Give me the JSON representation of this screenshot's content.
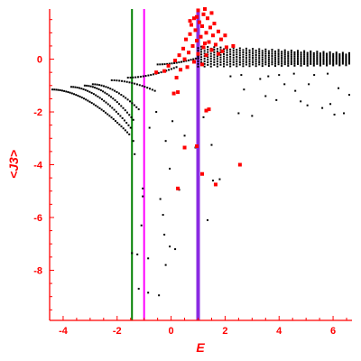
{
  "colors": {
    "axis": "#ff0000",
    "text": "#ff0000",
    "black_points": "#000000",
    "red_points": "#ff0000",
    "line_green": "#008000",
    "line_magenta": "#ff00ff",
    "line_purple": "#8a2be2",
    "background": "#ffffff"
  },
  "chart_data": {
    "type": "scatter",
    "title": "",
    "xlabel": "E",
    "ylabel": "<J3>",
    "xlim": [
      -4.5,
      6.7
    ],
    "ylim": [
      -9.9,
      1.9
    ],
    "x_ticks": [
      -4,
      -2,
      0,
      2,
      4,
      6
    ],
    "y_ticks": [
      -8,
      -6,
      -4,
      -2,
      0
    ],
    "x_tick_labels": [
      "-4",
      "-2",
      "0",
      "2",
      "4",
      "6"
    ],
    "y_tick_labels": [
      "-8",
      "-6",
      "-4",
      "-2",
      "0"
    ],
    "vertical_lines": [
      {
        "x": -1.45,
        "color": "#008000"
      },
      {
        "x": -1.0,
        "color": "#ff00ff"
      },
      {
        "x": 1.0,
        "color": "#8a2be2"
      }
    ],
    "black_bands": [
      {
        "x_start": -4.4,
        "x_end": -1.55,
        "y_start": -1.15,
        "y_end": -2.85,
        "n": 40
      },
      {
        "x_start": -3.7,
        "x_end": -1.5,
        "y_start": -1.05,
        "y_end": -2.6,
        "n": 30
      },
      {
        "x_start": -3.2,
        "x_end": -1.4,
        "y_start": -1.0,
        "y_end": -2.3,
        "n": 25
      },
      {
        "x_start": -2.9,
        "x_end": -1.2,
        "y_start": -0.95,
        "y_end": -1.9,
        "n": 22
      },
      {
        "x_start": -2.2,
        "x_end": -0.6,
        "y_start": -0.8,
        "y_end": -1.2,
        "n": 18
      },
      {
        "x_start": -1.6,
        "x_end": 0.2,
        "y_start": -0.7,
        "y_end": -0.3,
        "n": 20
      },
      {
        "x_start": -0.5,
        "x_end": 1.0,
        "y_start": -0.2,
        "y_end": 0.05,
        "n": 18
      }
    ],
    "black_cloud": {
      "x_min": 1.0,
      "x_max": 6.6,
      "y_top": 0.45,
      "y_bottom": -0.25,
      "rows": 8,
      "cols": 48
    },
    "black_points": [
      [
        -1.4,
        -3.1
      ],
      [
        -1.35,
        -3.6
      ],
      [
        -1.05,
        -5.2
      ],
      [
        -1.1,
        -6.3
      ],
      [
        -1.45,
        -7.35
      ],
      [
        -1.2,
        -8.7
      ],
      [
        -0.85,
        -8.85
      ],
      [
        -0.45,
        -8.95
      ],
      [
        -1.05,
        -4.9
      ],
      [
        -0.3,
        -5.9
      ],
      [
        -0.25,
        -6.65
      ],
      [
        -0.4,
        -5.3
      ],
      [
        -0.05,
        -4.15
      ],
      [
        -0.2,
        -3.1
      ],
      [
        -1.25,
        -7.4
      ],
      [
        -0.85,
        -7.55
      ],
      [
        -0.2,
        -7.8
      ],
      [
        1.35,
        -6.1
      ],
      [
        1.55,
        -4.6
      ],
      [
        1.8,
        -4.55
      ],
      [
        1.5,
        -3.25
      ],
      [
        0.3,
        -4.95
      ],
      [
        -0.05,
        -7.1
      ],
      [
        0.15,
        -7.2
      ],
      [
        0.9,
        -3.35
      ],
      [
        1.2,
        -2.2
      ],
      [
        0.5,
        -2.9
      ],
      [
        0.05,
        -2.35
      ],
      [
        -0.55,
        -2.0
      ],
      [
        -0.8,
        -2.6
      ],
      [
        3.0,
        -2.15
      ],
      [
        2.7,
        -1.15
      ],
      [
        2.6,
        -0.6
      ],
      [
        3.3,
        -0.75
      ],
      [
        3.5,
        -1.4
      ],
      [
        3.9,
        -1.55
      ],
      [
        4.2,
        -0.95
      ],
      [
        4.55,
        -0.55
      ],
      [
        4.8,
        -1.6
      ],
      [
        5.05,
        -1.75
      ],
      [
        5.3,
        -0.6
      ],
      [
        5.6,
        -1.85
      ],
      [
        5.9,
        -1.7
      ],
      [
        6.2,
        -1.1
      ],
      [
        6.4,
        -2.05
      ],
      [
        6.6,
        -1.35
      ],
      [
        2.2,
        -0.65
      ],
      [
        4.0,
        -0.6
      ],
      [
        5.1,
        -0.95
      ],
      [
        5.8,
        -0.55
      ],
      [
        6.05,
        -2.1
      ],
      [
        2.5,
        -2.05
      ],
      [
        3.6,
        -0.65
      ],
      [
        4.6,
        -1.2
      ]
    ],
    "red_points": [
      [
        1.0,
        1.85
      ],
      [
        1.2,
        1.7
      ],
      [
        0.85,
        1.55
      ],
      [
        1.05,
        1.4
      ],
      [
        1.35,
        1.55
      ],
      [
        0.75,
        1.3
      ],
      [
        1.15,
        1.25
      ],
      [
        1.45,
        1.2
      ],
      [
        1.6,
        1.35
      ],
      [
        0.9,
        1.1
      ],
      [
        1.3,
        1.0
      ],
      [
        0.7,
        0.95
      ],
      [
        1.55,
        0.9
      ],
      [
        1.75,
        1.05
      ],
      [
        1.1,
        0.85
      ],
      [
        0.95,
        0.7
      ],
      [
        1.4,
        0.65
      ],
      [
        0.55,
        0.75
      ],
      [
        1.85,
        0.75
      ],
      [
        1.65,
        0.55
      ],
      [
        0.8,
        0.5
      ],
      [
        1.2,
        0.45
      ],
      [
        0.45,
        0.4
      ],
      [
        1.5,
        0.35
      ],
      [
        2.05,
        0.45
      ],
      [
        0.65,
        0.25
      ],
      [
        1.0,
        0.2
      ],
      [
        1.3,
        0.15
      ],
      [
        0.3,
        0.15
      ],
      [
        1.75,
        0.2
      ],
      [
        0.5,
        0.0
      ],
      [
        0.15,
        -0.05
      ],
      [
        0.85,
        -0.1
      ],
      [
        1.15,
        -0.2
      ],
      [
        -0.1,
        -0.25
      ],
      [
        0.35,
        -0.4
      ],
      [
        0.6,
        -0.3
      ],
      [
        1.25,
        0.6
      ],
      [
        1.9,
        0.3
      ],
      [
        2.3,
        0.5
      ],
      [
        0.95,
        1.6
      ],
      [
        1.25,
        1.9
      ],
      [
        1.5,
        1.75
      ],
      [
        0.7,
        1.45
      ],
      [
        2.0,
        0.9
      ],
      [
        -0.25,
        -0.45
      ],
      [
        0.2,
        -0.7
      ],
      [
        -0.55,
        -0.5
      ],
      [
        0.1,
        -1.3
      ],
      [
        0.25,
        -1.25
      ],
      [
        1.3,
        -1.95
      ],
      [
        1.4,
        -1.9
      ],
      [
        0.95,
        -3.3
      ],
      [
        0.5,
        -3.35
      ],
      [
        1.15,
        -4.35
      ],
      [
        2.55,
        -4.0
      ],
      [
        1.65,
        -4.75
      ],
      [
        0.25,
        -4.9
      ]
    ]
  }
}
